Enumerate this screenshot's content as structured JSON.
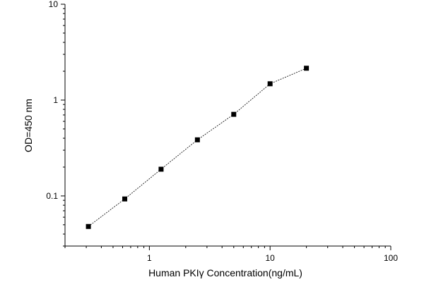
{
  "chart_data": {
    "type": "scatter",
    "title": "",
    "xlabel": "Human PKIγ   Concentration(ng/mL)",
    "ylabel": "OD=450 nm",
    "x_scale": "log",
    "y_scale": "log",
    "xlim": [
      0.2,
      100
    ],
    "ylim": [
      0.03,
      10
    ],
    "x_ticks": [
      1,
      10,
      100
    ],
    "x_tick_labels": [
      "1",
      "10",
      "100"
    ],
    "y_ticks": [
      0.1,
      1,
      10
    ],
    "y_tick_labels": [
      "0.1",
      "1",
      "10"
    ],
    "grid": false,
    "legend": "none",
    "line_style": "dashed",
    "marker": "square",
    "color": "#000000",
    "series": [
      {
        "x": [
          0.3125,
          0.625,
          1.25,
          2.5,
          5,
          10,
          20
        ],
        "y": [
          0.048,
          0.093,
          0.19,
          0.385,
          0.71,
          1.48,
          2.15
        ]
      }
    ]
  }
}
